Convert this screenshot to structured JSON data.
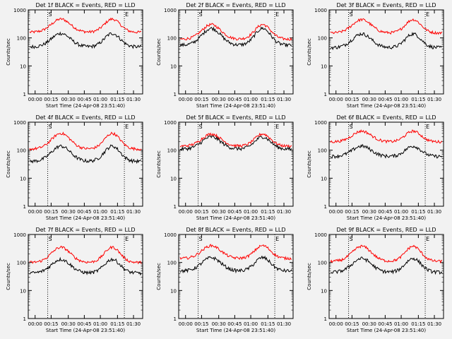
{
  "chart_data": {
    "type": "line",
    "layout": "3x3 grid of panels",
    "yscale": "log",
    "ylim": [
      1,
      1000
    ],
    "ylabel": "Counts/sec",
    "xlabel": "Start Time (24-Apr-08 23:51:40)",
    "x_tick_labels": [
      "00:00",
      "00:15",
      "00:30",
      "00:45",
      "01:00",
      "01:15",
      "01:30"
    ],
    "y_tick_labels": [
      "1",
      "10",
      "100",
      "1000"
    ],
    "series_colors": {
      "events": "#000000",
      "lld": "#ff0000"
    },
    "panels": [
      {
        "title": "Det 1f BLACK = Events, RED = LLD",
        "marker_s": "S",
        "marker_e": "E",
        "lld_base": 160,
        "lld_peak": 470,
        "events_base": 48,
        "events_peak": 145
      },
      {
        "title": "Det 2f BLACK = Events, RED = LLD",
        "marker_s": "S",
        "marker_e": "E",
        "lld_base": 90,
        "lld_peak": 300,
        "events_base": 55,
        "events_peak": 220
      },
      {
        "title": "Det 3f BLACK = Events, RED = LLD",
        "marker_s": "S",
        "marker_e": "E",
        "lld_base": 150,
        "lld_peak": 450,
        "events_base": 45,
        "events_peak": 140
      },
      {
        "title": "Det 4f BLACK = Events, RED = LLD",
        "marker_s": "S",
        "marker_e": "E",
        "lld_base": 110,
        "lld_peak": 400,
        "events_base": 40,
        "events_peak": 140
      },
      {
        "title": "Det 5f BLACK = Events, RED = LLD",
        "marker_s": "S",
        "marker_e": "E",
        "lld_base": 140,
        "lld_peak": 380,
        "events_base": 110,
        "events_peak": 300
      },
      {
        "title": "Det 6f BLACK = Events, RED = LLD",
        "marker_s": "S",
        "marker_e": "E",
        "lld_base": 200,
        "lld_peak": 480,
        "events_base": 60,
        "events_peak": 140
      },
      {
        "title": "Det 7f BLACK = Events, RED = LLD",
        "marker_s": "S",
        "marker_e": "E",
        "lld_base": 100,
        "lld_peak": 350,
        "events_base": 42,
        "events_peak": 130
      },
      {
        "title": "Det 8f BLACK = Events, RED = LLD",
        "marker_s": "S",
        "marker_e": "E",
        "lld_base": 140,
        "lld_peak": 400,
        "events_base": 50,
        "events_peak": 150
      },
      {
        "title": "Det 9f BLACK = Events, RED = LLD",
        "marker_s": "S",
        "marker_e": "E",
        "lld_base": 110,
        "lld_peak": 380,
        "events_base": 45,
        "events_peak": 140
      }
    ]
  }
}
